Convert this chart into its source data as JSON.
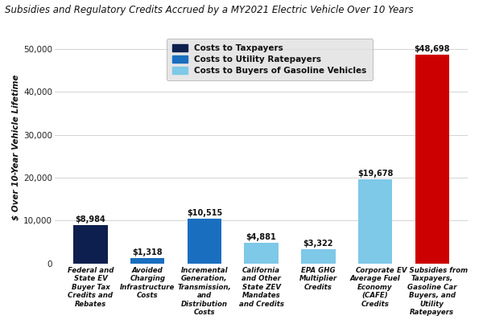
{
  "title": "Subsidies and Regulatory Credits Accrued by a MY2021 Electric Vehicle Over 10 Years",
  "ylabel": "$ Over 10-Year Vehicle Lifetime",
  "categories": [
    "Federal and\nState EV\nBuyer Tax\nCredits and\nRebates",
    "Avoided\nCharging\nInfrastructure\nCosts",
    "Incremental\nGeneration,\nTransmission,\nand\nDistribution\nCosts",
    "California\nand Other\nState ZEV\nMandates\nand Credits",
    "EPA GHG\nMultiplier\nCredits",
    "Corporate\nAverage Fuel\nEconomy\n(CAFE)\nCredits",
    "EV Subsidies from\nTaxpayers,\nGasoline Car\nBuyers, and\nUtility\nRatepayers"
  ],
  "values": [
    8984,
    1318,
    10515,
    4881,
    3322,
    19678,
    48698
  ],
  "labels": [
    "$8,984",
    "$1,318",
    "$10,515",
    "$4,881",
    "$3,322",
    "$19,678",
    "$48,698"
  ],
  "colors": [
    "#0d1f4e",
    "#1a6ec0",
    "#1a6ec0",
    "#7ec8e8",
    "#7ec8e8",
    "#7ec8e8",
    "#cc0000"
  ],
  "legend": [
    {
      "label": "Costs to Taxpayers",
      "color": "#0d1f4e"
    },
    {
      "label": "Costs to Utility Ratepayers",
      "color": "#1a6ec0"
    },
    {
      "label": "Costs to Buyers of Gasoline Vehicles",
      "color": "#7ec8e8"
    }
  ],
  "ylim": [
    0,
    54000
  ],
  "yticks": [
    0,
    10000,
    20000,
    30000,
    40000,
    50000
  ],
  "ytick_labels": [
    "0",
    "10,000",
    "20,000",
    "30,000",
    "40,000",
    "50,000"
  ],
  "bg_color": "#ffffff",
  "legend_bg": "#e0e0e0",
  "title_fontsize": 8.5,
  "bar_width": 0.6,
  "fig_width": 6.0,
  "fig_height": 4.08
}
